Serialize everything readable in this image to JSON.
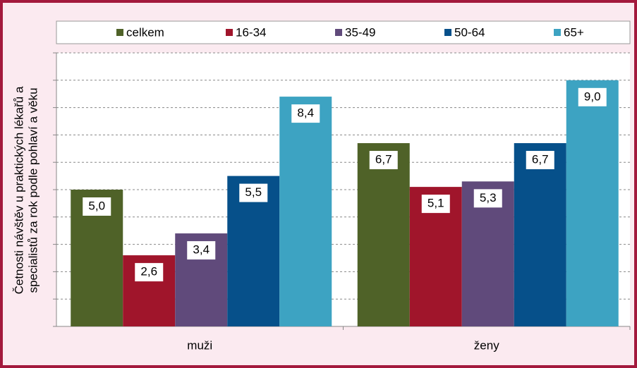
{
  "chart_data": {
    "type": "bar",
    "y_label": [
      "Četnosti návštěv u praktických lékařů a",
      "specialistů za rok podle pohlaví a věku"
    ],
    "categories": [
      "muži",
      "ženy"
    ],
    "series": [
      {
        "name": "celkem",
        "color": "#4f6228",
        "values": [
          5.0,
          6.7
        ],
        "value_labels": [
          "5,0",
          "6,7"
        ]
      },
      {
        "name": "16-34",
        "color": "#a0152b",
        "values": [
          2.6,
          5.1
        ],
        "value_labels": [
          "2,6",
          "5,1"
        ]
      },
      {
        "name": "35-49",
        "color": "#604a7b",
        "values": [
          3.4,
          5.3
        ],
        "value_labels": [
          "3,4",
          "5,3"
        ]
      },
      {
        "name": "50-64",
        "color": "#06508a",
        "values": [
          5.5,
          6.7
        ],
        "value_labels": [
          "5,5",
          "6,7"
        ]
      },
      {
        "name": "65+",
        "color": "#3da3c2",
        "values": [
          8.4,
          9.0
        ],
        "value_labels": [
          "8,4",
          "9,0"
        ]
      }
    ],
    "ylim": [
      0,
      10
    ],
    "yticks": [
      0,
      1,
      2,
      3,
      4,
      5,
      6,
      7,
      8,
      9,
      10
    ],
    "grid": true,
    "legend": "top"
  }
}
